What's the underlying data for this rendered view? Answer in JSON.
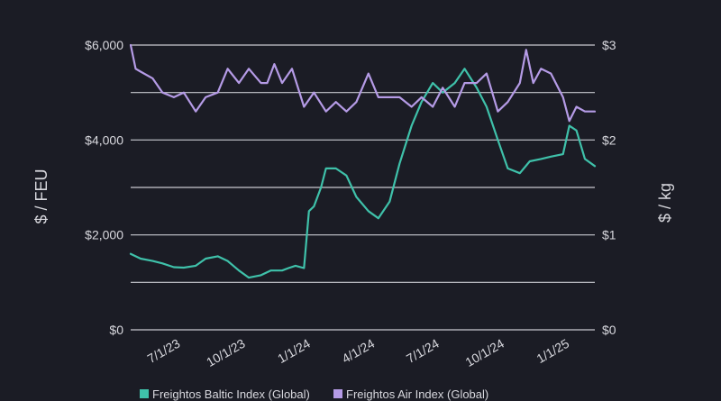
{
  "chart_data": {
    "type": "line",
    "ylabel_left": "$ / FEU",
    "ylabel_right": "$ / kg",
    "ylim_left": [
      0,
      6000
    ],
    "ylim_right": [
      0,
      3
    ],
    "yticks_left": [
      {
        "value": 0,
        "label": "$0"
      },
      {
        "value": 2000,
        "label": "$2,000"
      },
      {
        "value": 4000,
        "label": "$4,000"
      },
      {
        "value": 6000,
        "label": "$6,000"
      }
    ],
    "yticks_right": [
      {
        "value": 0,
        "label": "$0"
      },
      {
        "value": 1,
        "label": "$1"
      },
      {
        "value": 2,
        "label": "$2"
      },
      {
        "value": 3,
        "label": "$3"
      }
    ],
    "xlim": [
      "2023-05-01",
      "2025-02-15"
    ],
    "xticks": [
      {
        "value": "2023-07-01",
        "label": "7/1/23"
      },
      {
        "value": "2023-10-01",
        "label": "10/1/23"
      },
      {
        "value": "2024-01-01",
        "label": "1/1/24"
      },
      {
        "value": "2024-04-01",
        "label": "4/1/24"
      },
      {
        "value": "2024-07-01",
        "label": "7/1/24"
      },
      {
        "value": "2024-10-01",
        "label": "10/1/24"
      },
      {
        "value": "2025-01-01",
        "label": "1/1/25"
      }
    ],
    "grid": true,
    "legend_position": "bottom",
    "series": [
      {
        "name": "Freightos Baltic Index (Global)",
        "axis": "left",
        "color": "#3fc1aa",
        "x": [
          "2023-05-01",
          "2023-05-15",
          "2023-06-01",
          "2023-06-15",
          "2023-07-01",
          "2023-07-15",
          "2023-08-01",
          "2023-08-15",
          "2023-09-01",
          "2023-09-15",
          "2023-10-01",
          "2023-10-15",
          "2023-11-01",
          "2023-11-15",
          "2023-12-01",
          "2023-12-10",
          "2023-12-20",
          "2024-01-01",
          "2024-01-08",
          "2024-01-15",
          "2024-01-25",
          "2024-02-01",
          "2024-02-15",
          "2024-03-01",
          "2024-03-15",
          "2024-04-01",
          "2024-04-15",
          "2024-05-01",
          "2024-05-15",
          "2024-06-01",
          "2024-06-15",
          "2024-07-01",
          "2024-07-15",
          "2024-08-01",
          "2024-08-15",
          "2024-09-01",
          "2024-09-15",
          "2024-10-01",
          "2024-10-15",
          "2024-11-01",
          "2024-11-15",
          "2024-12-01",
          "2024-12-15",
          "2025-01-01",
          "2025-01-10",
          "2025-01-20",
          "2025-02-01",
          "2025-02-15"
        ],
        "y": [
          1600,
          1500,
          1450,
          1400,
          1320,
          1310,
          1350,
          1500,
          1550,
          1450,
          1250,
          1100,
          1150,
          1250,
          1250,
          1300,
          1350,
          1300,
          2500,
          2600,
          3000,
          3400,
          3400,
          3250,
          2800,
          2500,
          2350,
          2700,
          3500,
          4300,
          4800,
          5200,
          5000,
          5200,
          5500,
          5100,
          4700,
          4000,
          3400,
          3300,
          3550,
          3600,
          3650,
          3700,
          4300,
          4200,
          3600,
          3450
        ]
      },
      {
        "name": "Freightos Air Index (Global)",
        "axis": "right",
        "color": "#b59be6",
        "x": [
          "2023-05-01",
          "2023-05-08",
          "2023-05-15",
          "2023-06-01",
          "2023-06-15",
          "2023-07-01",
          "2023-07-15",
          "2023-08-01",
          "2023-08-15",
          "2023-09-01",
          "2023-09-15",
          "2023-10-01",
          "2023-10-15",
          "2023-11-01",
          "2023-11-10",
          "2023-11-20",
          "2023-12-01",
          "2023-12-15",
          "2024-01-01",
          "2024-01-15",
          "2024-02-01",
          "2024-02-15",
          "2024-03-01",
          "2024-03-15",
          "2024-04-01",
          "2024-04-15",
          "2024-05-01",
          "2024-05-15",
          "2024-06-01",
          "2024-06-15",
          "2024-07-01",
          "2024-07-15",
          "2024-08-01",
          "2024-08-15",
          "2024-09-01",
          "2024-09-15",
          "2024-10-01",
          "2024-10-15",
          "2024-11-01",
          "2024-11-10",
          "2024-11-20",
          "2024-12-01",
          "2024-12-15",
          "2025-01-01",
          "2025-01-10",
          "2025-01-20",
          "2025-02-01",
          "2025-02-15"
        ],
        "y": [
          3.0,
          2.75,
          2.72,
          2.65,
          2.5,
          2.45,
          2.5,
          2.3,
          2.45,
          2.5,
          2.75,
          2.6,
          2.75,
          2.6,
          2.6,
          2.8,
          2.6,
          2.75,
          2.35,
          2.5,
          2.3,
          2.4,
          2.3,
          2.4,
          2.7,
          2.45,
          2.45,
          2.45,
          2.35,
          2.45,
          2.35,
          2.55,
          2.35,
          2.6,
          2.6,
          2.7,
          2.3,
          2.4,
          2.6,
          2.95,
          2.6,
          2.75,
          2.7,
          2.45,
          2.2,
          2.35,
          2.3,
          2.3
        ]
      }
    ]
  }
}
